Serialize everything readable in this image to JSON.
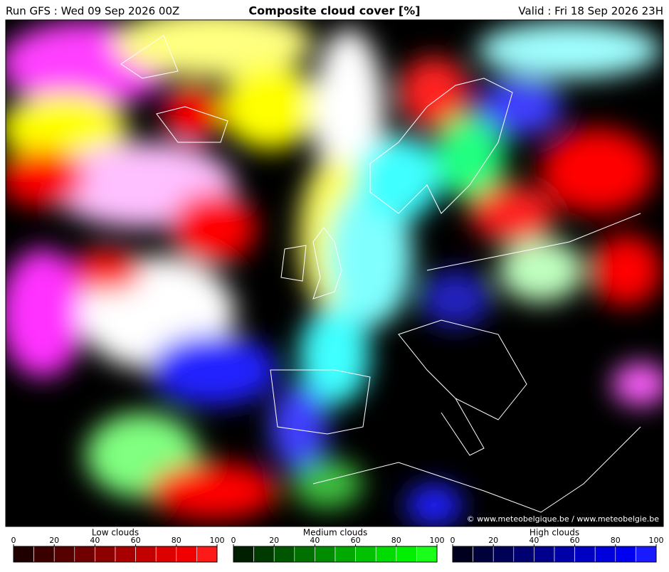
{
  "header": {
    "run": "Run GFS : Wed 09 Sep 2026 00Z",
    "title": "Composite cloud cover [%]",
    "valid": "Valid : Fri 18 Sep 2026 23H"
  },
  "map": {
    "credit": "© www.meteobelgique.be / www.meteobelgie.be"
  },
  "legends": [
    {
      "title": "Low clouds",
      "ticks": [
        0,
        20,
        40,
        60,
        80,
        100
      ],
      "colors": [
        "#1e0000",
        "#3a0000",
        "#560000",
        "#700000",
        "#8c0000",
        "#a80000",
        "#c20000",
        "#dc0000",
        "#f00000",
        "#ff1a1a"
      ]
    },
    {
      "title": "Medium clouds",
      "ticks": [
        0,
        20,
        40,
        60,
        80,
        100
      ],
      "colors": [
        "#001e00",
        "#003a00",
        "#005600",
        "#007000",
        "#008c00",
        "#00a800",
        "#00c200",
        "#00dc00",
        "#00f000",
        "#1aff1a"
      ]
    },
    {
      "title": "High clouds",
      "ticks": [
        0,
        20,
        40,
        60,
        80,
        100
      ],
      "colors": [
        "#00001e",
        "#00003a",
        "#000056",
        "#000070",
        "#00008c",
        "#0000a8",
        "#0000c2",
        "#0000dc",
        "#0000f0",
        "#1a1aff"
      ]
    }
  ]
}
